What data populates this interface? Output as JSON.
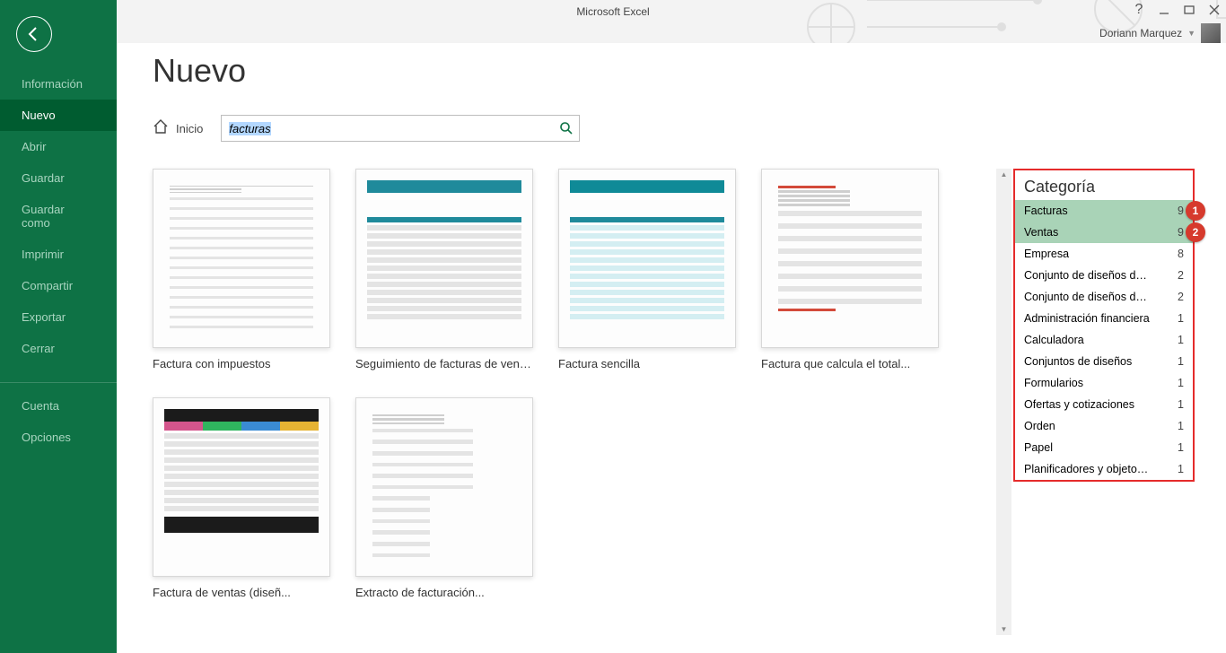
{
  "app_title": "Microsoft Excel",
  "user_name": "Doriann Marquez",
  "sidebar": {
    "items": [
      {
        "label": "Información",
        "active": false
      },
      {
        "label": "Nuevo",
        "active": true
      },
      {
        "label": "Abrir",
        "active": false
      },
      {
        "label": "Guardar",
        "active": false
      },
      {
        "label": "Guardar como",
        "active": false
      },
      {
        "label": "Imprimir",
        "active": false
      },
      {
        "label": "Compartir",
        "active": false
      },
      {
        "label": "Exportar",
        "active": false
      },
      {
        "label": "Cerrar",
        "active": false
      },
      {
        "label": "Cuenta",
        "active": false,
        "sep": true
      },
      {
        "label": "Opciones",
        "active": false
      }
    ]
  },
  "page_title": "Nuevo",
  "search": {
    "home_label": "Inicio",
    "value": "facturas"
  },
  "templates": [
    {
      "label": "Factura con impuestos",
      "style": "plain"
    },
    {
      "label": "Seguimiento de facturas de ventas",
      "style": "teal"
    },
    {
      "label": "Factura sencilla",
      "style": "teal2"
    },
    {
      "label": "Factura que calcula el total...",
      "style": "red"
    },
    {
      "label": "Factura de ventas (diseñ...",
      "style": "dark"
    },
    {
      "label": "Extracto de facturación...",
      "style": "plain2"
    }
  ],
  "category": {
    "title": "Categoría",
    "items": [
      {
        "label": "Facturas",
        "count": "9",
        "selected": true,
        "marker": "1"
      },
      {
        "label": "Ventas",
        "count": "9",
        "selected": true,
        "marker": "2"
      },
      {
        "label": "Empresa",
        "count": "8"
      },
      {
        "label": "Conjunto de diseños de deg...",
        "count": "2"
      },
      {
        "label": "Conjunto de diseños de deg...",
        "count": "2"
      },
      {
        "label": "Administración financiera",
        "count": "1"
      },
      {
        "label": "Calculadora",
        "count": "1"
      },
      {
        "label": "Conjuntos de diseños",
        "count": "1"
      },
      {
        "label": "Formularios",
        "count": "1"
      },
      {
        "label": "Ofertas y cotizaciones",
        "count": "1"
      },
      {
        "label": "Orden",
        "count": "1"
      },
      {
        "label": "Papel",
        "count": "1"
      },
      {
        "label": "Planificadores y objetos de...",
        "count": "1"
      }
    ]
  },
  "colors": {
    "sidebar_bg": "#0e7245",
    "sidebar_active": "#005c30",
    "highlight_red": "#e52b2b",
    "marker_bg": "#d63a2d",
    "selected_cat": "#a9d3b7"
  }
}
